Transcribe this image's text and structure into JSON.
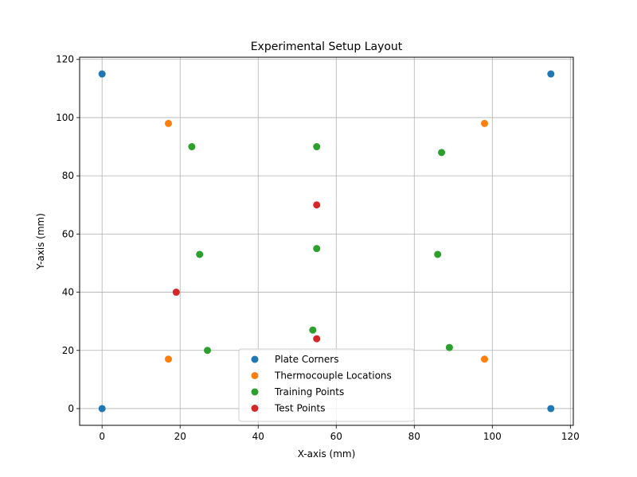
{
  "chart_data": {
    "type": "scatter",
    "title": "Experimental Setup Layout",
    "xlabel": "X-axis (mm)",
    "ylabel": "Y-axis (mm)",
    "xlim": [
      -5.75,
      120.75
    ],
    "ylim": [
      -5.75,
      120.75
    ],
    "xticks": [
      0,
      20,
      40,
      60,
      80,
      100,
      120
    ],
    "yticks": [
      0,
      20,
      40,
      60,
      80,
      100,
      120
    ],
    "grid": true,
    "legend_position": "bottom-center",
    "series": [
      {
        "name": "Plate Corners",
        "color": "#1f77b4",
        "points": [
          [
            0,
            0
          ],
          [
            115,
            0
          ],
          [
            0,
            115
          ],
          [
            115,
            115
          ]
        ]
      },
      {
        "name": "Thermocouple Locations",
        "color": "#ff7f0e",
        "points": [
          [
            17,
            17
          ],
          [
            98,
            17
          ],
          [
            17,
            98
          ],
          [
            98,
            98
          ]
        ]
      },
      {
        "name": "Training Points",
        "color": "#2ca02c",
        "points": [
          [
            23,
            90
          ],
          [
            55,
            90
          ],
          [
            87,
            88
          ],
          [
            25,
            53
          ],
          [
            55,
            55
          ],
          [
            86,
            53
          ],
          [
            27,
            20
          ],
          [
            54,
            27
          ],
          [
            89,
            21
          ]
        ]
      },
      {
        "name": "Test Points",
        "color": "#d62728",
        "points": [
          [
            55,
            70
          ],
          [
            19,
            40
          ],
          [
            55,
            24
          ]
        ]
      }
    ]
  }
}
